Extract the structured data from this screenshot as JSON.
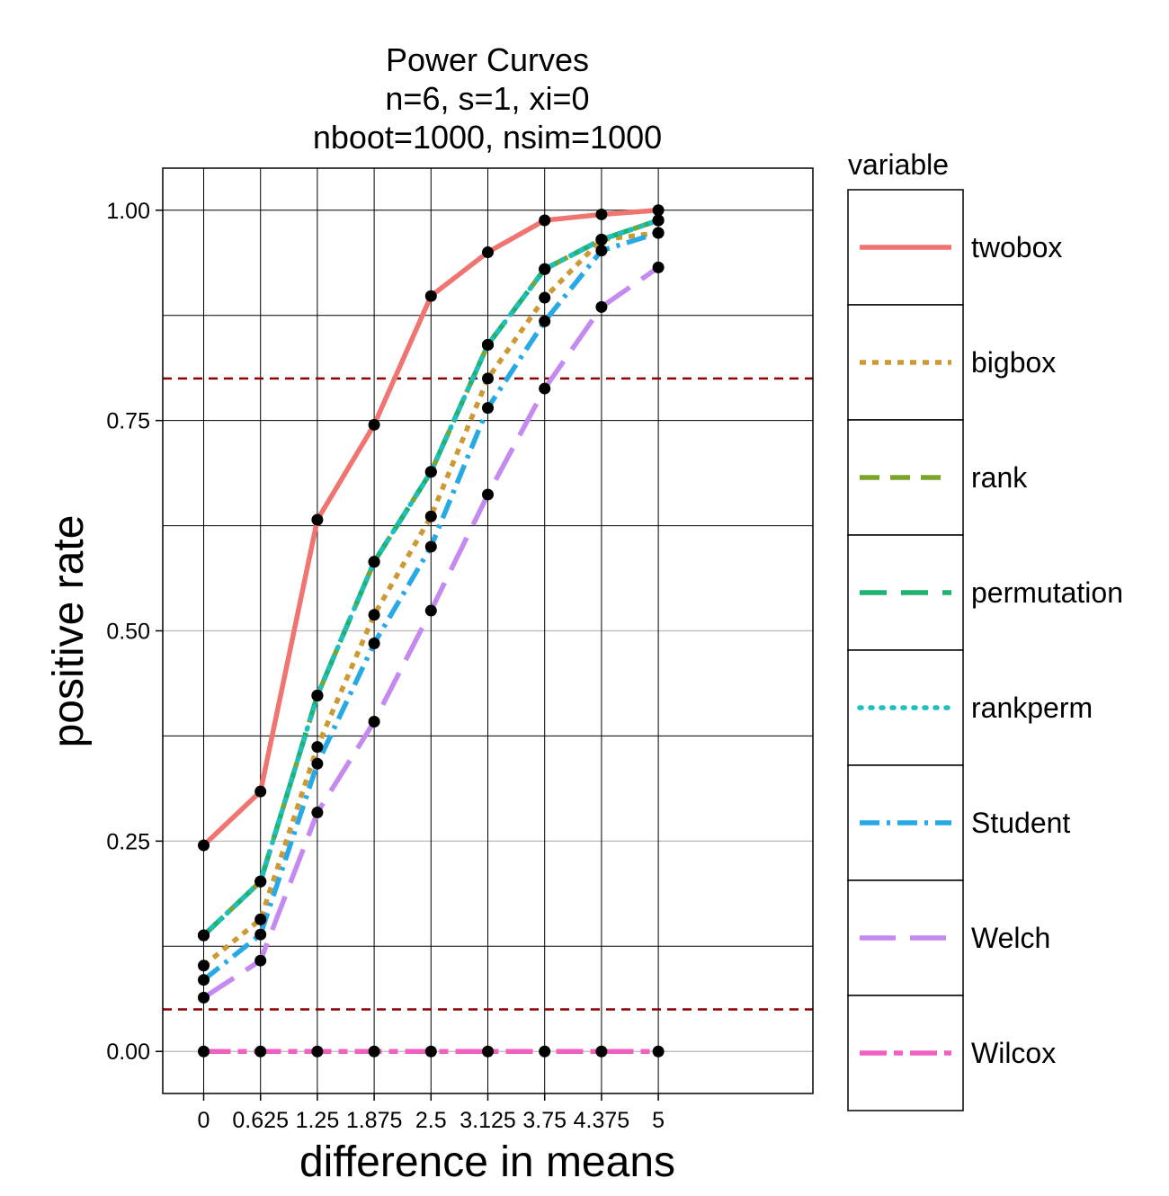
{
  "chart_data": {
    "type": "line",
    "title": [
      "Power Curves",
      "n=6, s=1, xi=0",
      "nboot=1000, nsim=1000"
    ],
    "xlabel": "difference in means",
    "ylabel": "positive rate",
    "x": [
      0,
      0.625,
      1.25,
      1.875,
      2.5,
      3.125,
      3.75,
      4.375,
      5
    ],
    "x_tick_labels": [
      "0",
      "0.625",
      "1.25",
      "1.875",
      "2.5",
      "3.125",
      "3.75",
      "4.375",
      "5"
    ],
    "y_ticks": [
      0,
      0.25,
      0.5,
      0.75,
      1
    ],
    "y_tick_labels": [
      "0.00",
      "0.25",
      "0.50",
      "0.75",
      "1.00"
    ],
    "y_minor_ticks": [
      0.125,
      0.375,
      0.625,
      0.875
    ],
    "xlim": [
      -0.45,
      6.7
    ],
    "ylim": [
      -0.05,
      1.05
    ],
    "grid": true,
    "reference_lines": [
      0.8,
      0.05
    ],
    "reference_line_color": "#8b0000",
    "legend": {
      "title": "variable",
      "placement": "right"
    },
    "series": [
      {
        "name": "twobox",
        "color": "#f07470",
        "dash": "solid",
        "values": [
          0.245,
          0.309,
          0.632,
          0.745,
          0.898,
          0.95,
          0.988,
          0.995,
          1.0
        ]
      },
      {
        "name": "bigbox",
        "color": "#cc9933",
        "dash": "dotted-square",
        "values": [
          0.102,
          0.157,
          0.362,
          0.519,
          0.636,
          0.8,
          0.896,
          0.965,
          0.973
        ]
      },
      {
        "name": "rank",
        "color": "#7aa52a",
        "dash": "dashed",
        "values": [
          0.138,
          0.202,
          0.423,
          0.582,
          0.689,
          0.84,
          0.93,
          0.965,
          0.988
        ]
      },
      {
        "name": "permutation",
        "color": "#1fb170",
        "dash": "longdash",
        "values": [
          0.138,
          0.202,
          0.423,
          0.582,
          0.689,
          0.84,
          0.93,
          0.965,
          0.988
        ]
      },
      {
        "name": "rankperm",
        "color": "#1fbfbf",
        "dash": "dotted",
        "values": [
          0.138,
          0.202,
          0.423,
          0.582,
          0.689,
          0.84,
          0.93,
          0.965,
          0.988
        ]
      },
      {
        "name": "Student",
        "color": "#27a9e6",
        "dash": "dotdash",
        "values": [
          0.085,
          0.139,
          0.342,
          0.485,
          0.6,
          0.765,
          0.868,
          0.952,
          0.973
        ]
      },
      {
        "name": "Welch",
        "color": "#c58af0",
        "dash": "longdash-gap",
        "values": [
          0.064,
          0.108,
          0.284,
          0.392,
          0.524,
          0.662,
          0.788,
          0.885,
          0.932
        ]
      },
      {
        "name": "Wilcox",
        "color": "#f060c0",
        "dash": "twodash",
        "values": [
          0,
          0,
          0,
          0,
          0,
          0,
          0,
          0,
          0
        ]
      }
    ],
    "point_color": "#000000"
  }
}
